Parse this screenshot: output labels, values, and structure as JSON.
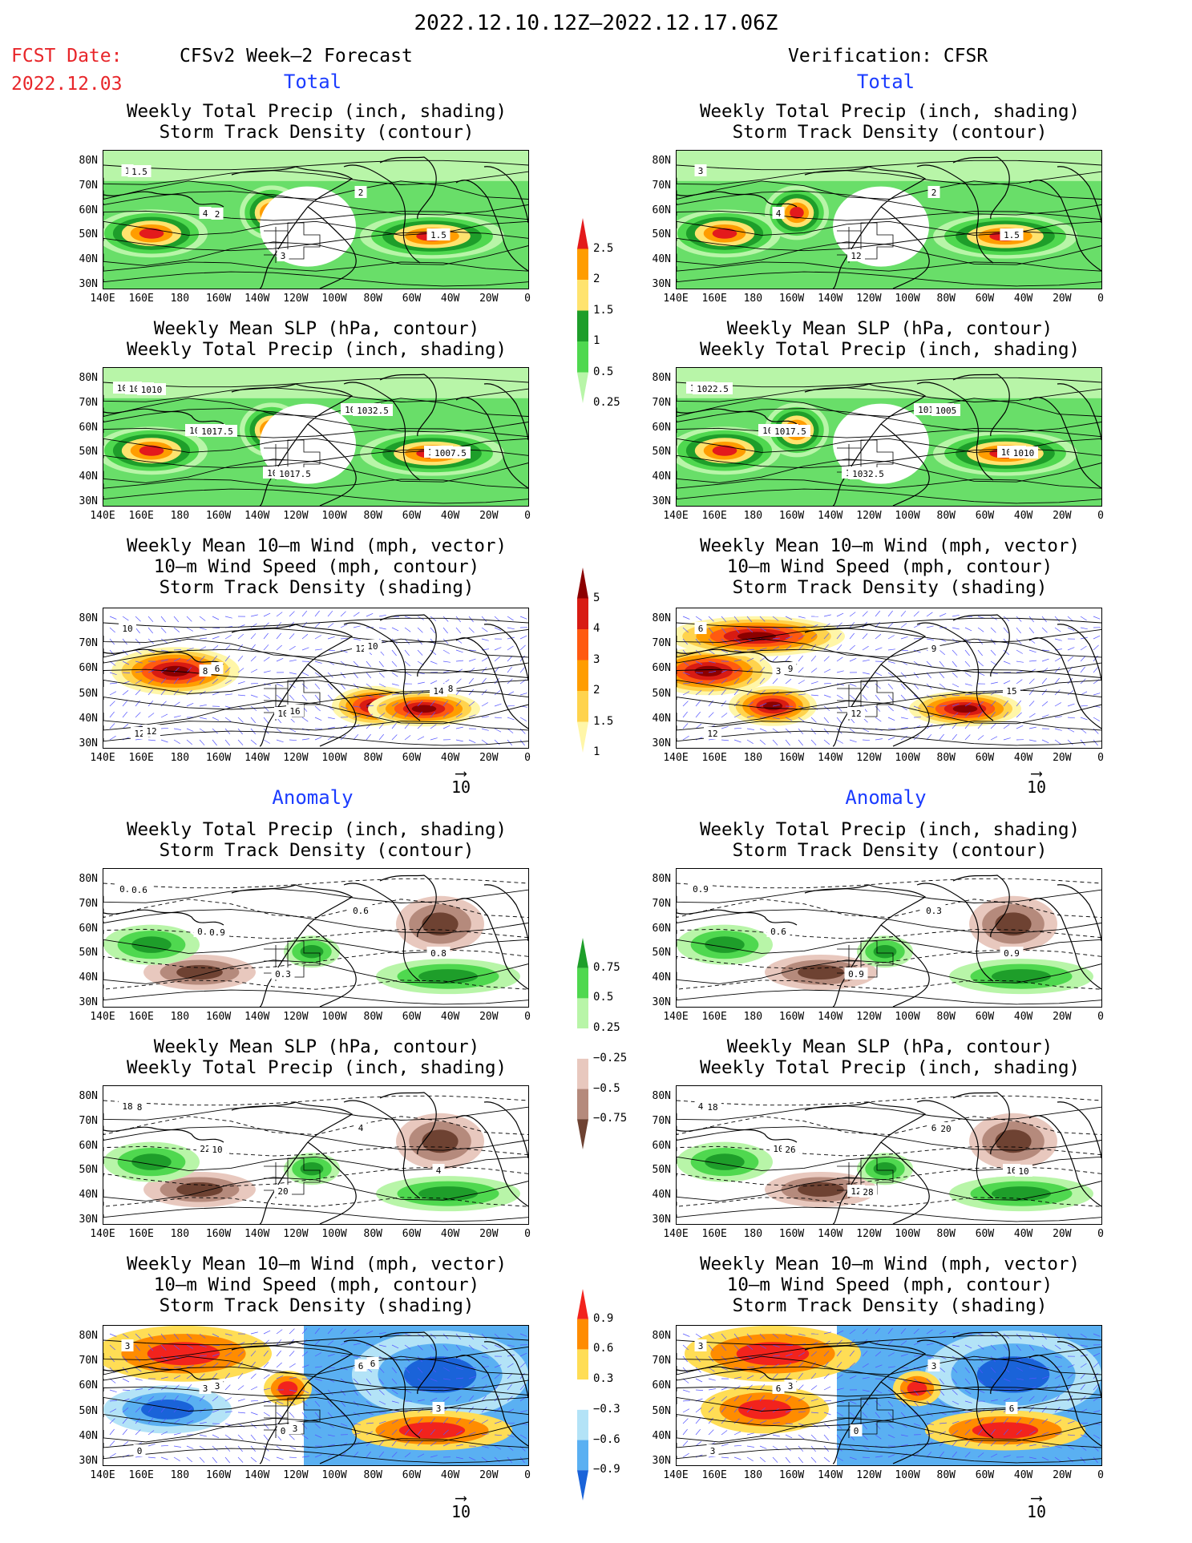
{
  "header": {
    "date_range": "2022.12.10.12Z–2022.12.17.06Z",
    "fcst_label": "FCST Date:",
    "fcst_date": "2022.12.03",
    "left_title": "CFSv2 Week–2 Forecast",
    "right_title": "Verification: CFSR",
    "total_label": "Total",
    "anomaly_label": "Anomaly"
  },
  "panel_titles": {
    "precip_storm": [
      "Weekly Total Precip (inch, shading)",
      "Storm Track Density (contour)"
    ],
    "slp_precip": [
      "Weekly Mean SLP (hPa, contour)",
      "Weekly Total Precip (inch, shading)"
    ],
    "wind_storm": [
      "Weekly Mean 10–m Wind (mph, vector)",
      "10–m Wind Speed (mph, contour)",
      "Storm Track Density (shading)"
    ]
  },
  "axes": {
    "lat_labels": [
      "80N",
      "70N",
      "60N",
      "50N",
      "40N",
      "30N"
    ],
    "lon_labels": [
      "140E",
      "160E",
      "180",
      "160W",
      "140W",
      "120W",
      "100W",
      "80W",
      "60W",
      "40W",
      "20W",
      "0"
    ]
  },
  "vector_ref": "10",
  "colorbars": {
    "total_precip": [
      "2.5",
      "2",
      "1.5",
      "1",
      "0.5",
      "0.25"
    ],
    "total_precip_colors": [
      "#e31a1c",
      "#ff9d00",
      "#ffe36e",
      "#1e9e2a",
      "#4fd84f",
      "#b8f5a8"
    ],
    "storm_density": [
      "5",
      "4",
      "3",
      "2",
      "1.5",
      "1"
    ],
    "storm_density_colors": [
      "#8b0000",
      "#d81b13",
      "#ff5a10",
      "#ff9d00",
      "#ffd34d",
      "#fff6a8"
    ],
    "anom_precip": [
      "0.75",
      "0.5",
      "0.25",
      "−0.25",
      "−0.5",
      "−0.75"
    ],
    "anom_precip_colors": [
      "#1e9e2a",
      "#4fd84f",
      "#b8f5a8",
      "#ffffff",
      "#e8c8be",
      "#b58a7c",
      "#6e4232"
    ],
    "anom_storm": [
      "0.9",
      "0.6",
      "0.3",
      "−0.3",
      "−0.6",
      "−0.9"
    ],
    "anom_storm_colors": [
      "#f2231d",
      "#ff8c00",
      "#ffdd55",
      "#ffffff",
      "#b3e3f7",
      "#5ab0f2",
      "#1a63d9"
    ]
  },
  "contour_labels": {
    "f_total_precip": [
      "1",
      "4",
      "3",
      "2",
      "1.5",
      "1.5",
      "2"
    ],
    "v_total_precip": [
      "3",
      "4",
      "12",
      "2",
      "1.5"
    ],
    "f_total_slp": [
      "1020",
      "1022.5",
      "1012.5",
      "1002.5",
      "1010",
      "1015",
      "1017.5",
      "1017.5",
      "1032.5",
      "1007.5",
      "1010"
    ],
    "v_total_slp": [
      "1030",
      "1027.5",
      "1020",
      "1012.5",
      "1015",
      "1022.5",
      "1017.5",
      "1032.5",
      "1005",
      "1010"
    ],
    "f_total_wind": [
      "10",
      "8",
      "10",
      "12",
      "14",
      "12",
      "6",
      "16",
      "10",
      "8",
      "12"
    ],
    "v_total_wind": [
      "6",
      "3",
      "12",
      "9",
      "15",
      "12",
      "9"
    ],
    "f_anom_precip": [
      "0.6",
      "0.3",
      "0.3",
      "0.6",
      "0.8",
      "0.6",
      "0.9"
    ],
    "v_anom_precip": [
      "0.9",
      "0.6",
      "0.9",
      "0.3",
      "0.9"
    ],
    "f_anom_slp": [
      "18",
      "22",
      "20",
      "4",
      "4",
      "8",
      "10"
    ],
    "v_anom_slp": [
      "4",
      "10",
      "12",
      "6",
      "16",
      "18",
      "26",
      "28",
      "20",
      "10"
    ],
    "f_anom_wind": [
      "3",
      "3",
      "0",
      "6",
      "3",
      "0",
      "3",
      "3",
      "6"
    ],
    "v_anom_wind": [
      "3",
      "6",
      "0",
      "3",
      "6",
      "3",
      "3"
    ]
  }
}
